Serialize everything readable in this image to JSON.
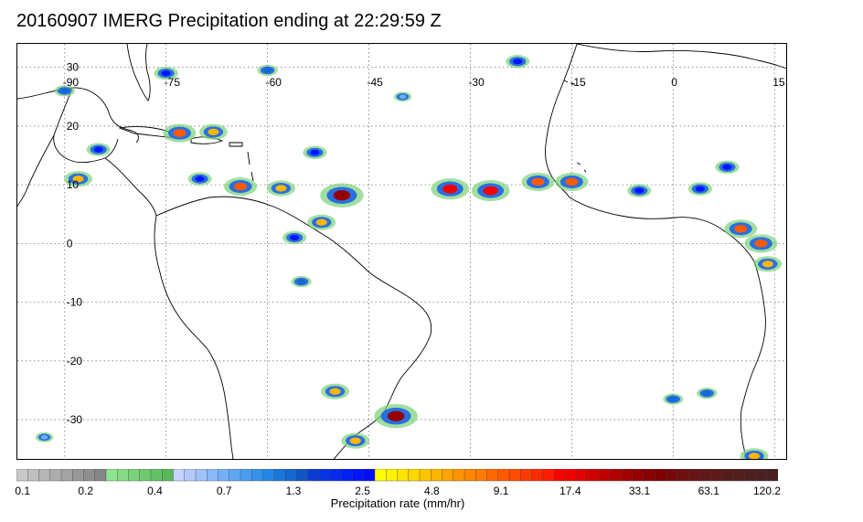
{
  "title": "20160907 IMERG Precipitation ending at 22:29:59 Z",
  "map": {
    "lon_range": [
      -97,
      17
    ],
    "lat_range": [
      -37,
      34
    ],
    "lon_ticks": [
      {
        "value": -90,
        "label": "-90"
      },
      {
        "value": -75,
        "label": "-75"
      },
      {
        "value": -60,
        "label": "-60"
      },
      {
        "value": -45,
        "label": "-45"
      },
      {
        "value": -30,
        "label": "-30"
      },
      {
        "value": -15,
        "label": "-15"
      },
      {
        "value": 0,
        "label": "0"
      },
      {
        "value": 15,
        "label": "15"
      }
    ],
    "lat_ticks": [
      {
        "value": 30,
        "label": "30"
      },
      {
        "value": 20,
        "label": "20"
      },
      {
        "value": 10,
        "label": "10"
      },
      {
        "value": 0,
        "label": "0"
      },
      {
        "value": -10,
        "label": "-10"
      },
      {
        "value": -20,
        "label": "-20"
      },
      {
        "value": -30,
        "label": "-30"
      }
    ],
    "grid": true,
    "grid_style": "dotted",
    "coastline_color": "#000000",
    "precip_cells": [
      {
        "lon": -49,
        "lat": 8.2,
        "rate": 33.1
      },
      {
        "lon": -33,
        "lat": 9.3,
        "rate": 17.4
      },
      {
        "lon": -27,
        "lat": 9.0,
        "rate": 17.4
      },
      {
        "lon": -20,
        "lat": 10.5,
        "rate": 9.1
      },
      {
        "lon": -15,
        "lat": 10.5,
        "rate": 9.1
      },
      {
        "lon": -41,
        "lat": -29.4,
        "rate": 33.1
      },
      {
        "lon": -50,
        "lat": -25.2,
        "rate": 4.8
      },
      {
        "lon": -47,
        "lat": -33.6,
        "rate": 4.8
      },
      {
        "lon": -73,
        "lat": 18.8,
        "rate": 9.1
      },
      {
        "lon": -68,
        "lat": 19.0,
        "rate": 4.8
      },
      {
        "lon": -64,
        "lat": 9.7,
        "rate": 9.1
      },
      {
        "lon": -58,
        "lat": 9.4,
        "rate": 4.8
      },
      {
        "lon": -52,
        "lat": 3.6,
        "rate": 4.8
      },
      {
        "lon": -56,
        "lat": 1.0,
        "rate": 2.5
      },
      {
        "lon": -88,
        "lat": 11.0,
        "rate": 4.8
      },
      {
        "lon": 10,
        "lat": 2.5,
        "rate": 9.1
      },
      {
        "lon": 13,
        "lat": 0.0,
        "rate": 9.1
      },
      {
        "lon": 14,
        "lat": -3.5,
        "rate": 4.8
      },
      {
        "lon": 12,
        "lat": -36.2,
        "rate": 4.8
      },
      {
        "lon": -55,
        "lat": -6.5,
        "rate": 1.3
      },
      {
        "lon": 5,
        "lat": -25.5,
        "rate": 1.3
      },
      {
        "lon": -85,
        "lat": 16.0,
        "rate": 2.5
      },
      {
        "lon": -70,
        "lat": 11.0,
        "rate": 2.5
      },
      {
        "lon": -5,
        "lat": 9.0,
        "rate": 2.5
      },
      {
        "lon": 4,
        "lat": 9.3,
        "rate": 2.5
      },
      {
        "lon": 8,
        "lat": 13.0,
        "rate": 2.5
      },
      {
        "lon": -90,
        "lat": 26.0,
        "rate": 1.3
      },
      {
        "lon": -75,
        "lat": 29.0,
        "rate": 2.5
      },
      {
        "lon": -60,
        "lat": 29.5,
        "rate": 1.3
      },
      {
        "lon": -53,
        "lat": 15.5,
        "rate": 2.5
      },
      {
        "lon": -40,
        "lat": 25.0,
        "rate": 0.7
      },
      {
        "lon": -23,
        "lat": 31.0,
        "rate": 2.5
      },
      {
        "lon": -93,
        "lat": -33.0,
        "rate": 0.7
      },
      {
        "lon": 0,
        "lat": -26.5,
        "rate": 1.3
      }
    ]
  },
  "colorbar": {
    "title": "Precipitation rate (mm/hr)",
    "tick_labels": [
      "0.1",
      "0.2",
      "0.4",
      "0.7",
      "1.3",
      "2.5",
      "4.8",
      "9.1",
      "17.4",
      "33.1",
      "63.1",
      "120.2"
    ],
    "colors": [
      "#c9c9c9",
      "#c0c0c0",
      "#b6b6b6",
      "#adadad",
      "#a3a3a3",
      "#999999",
      "#8f8f8f",
      "#858585",
      "#8fe48f",
      "#85dc85",
      "#79d279",
      "#6fca6f",
      "#65c165",
      "#5ab85a",
      "#c6d4ff",
      "#b4cafd",
      "#9fc2fb",
      "#8ab9f9",
      "#75b0f6",
      "#5fa6f3",
      "#4a9cef",
      "#3592ea",
      "#2288e3",
      "#1a77d9",
      "#1566cf",
      "#1056c4",
      "#0b3cd8",
      "#0934e3",
      "#062aee",
      "#031ff6",
      "#0014ff",
      "#000dff",
      "#ffff00",
      "#fff200",
      "#ffe400",
      "#ffd600",
      "#ffc600",
      "#ffb600",
      "#ffa400",
      "#ff9400",
      "#ff8600",
      "#ff7a00",
      "#ff6a00",
      "#ff5a00",
      "#ff4a00",
      "#ff3a00",
      "#ff2a00",
      "#ff1a00",
      "#ff0000",
      "#f20000",
      "#e10000",
      "#d00000",
      "#c00000",
      "#b00000",
      "#a20000",
      "#940000",
      "#880000",
      "#7e0000",
      "#760a0a",
      "#6e1010",
      "#681414",
      "#621818",
      "#5c1a1a",
      "#561c1c",
      "#521d1d",
      "#4e1e1e",
      "#4a1f1f",
      "#461f1f"
    ]
  }
}
